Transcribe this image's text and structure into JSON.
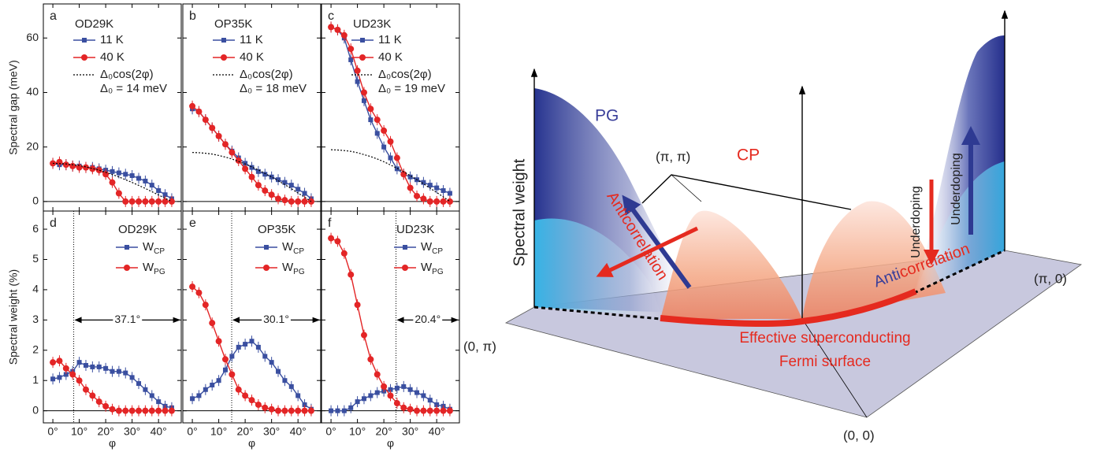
{
  "chart_data": [
    {
      "type": "line",
      "letter": "a",
      "title": "OD29K",
      "ylabel": "Spectral gap (meV)",
      "x": [
        0,
        2.5,
        5,
        7.5,
        10,
        12.5,
        15,
        17.5,
        20,
        22.5,
        25,
        27.5,
        30,
        32.5,
        35,
        37.5,
        40,
        42.5,
        45
      ],
      "series": [
        {
          "name": "11 K",
          "color": "#3a4fa0",
          "marker": "square",
          "values": [
            14,
            13.5,
            13.5,
            13,
            13,
            12.5,
            12.5,
            12,
            11.5,
            11,
            10.5,
            10,
            9.5,
            8.5,
            7.5,
            6,
            4,
            2.5,
            1
          ]
        },
        {
          "name": "40 K",
          "color": "#e32526",
          "marker": "circle",
          "values": [
            14,
            14.5,
            13.5,
            13,
            12.5,
            12.5,
            12,
            11.5,
            10,
            7,
            3,
            0,
            0,
            0,
            0,
            0,
            0,
            0,
            0
          ]
        },
        {
          "name": "Δ₀cos(2φ)",
          "color": "#000000",
          "dash": true,
          "values": [
            14,
            13.9,
            13.8,
            13.5,
            13.2,
            12.7,
            12.1,
            11.5,
            10.7,
            9.9,
            9,
            8,
            7,
            5.9,
            4.8,
            3.6,
            2.4,
            1.2,
            0
          ]
        }
      ],
      "delta_label": "Δ₀ = 14 meV",
      "xlim": [
        -3.6,
        48.6
      ],
      "ylim": [
        -3.5,
        72.5
      ],
      "yticks": [
        0,
        20,
        40,
        60
      ],
      "zero_line": true
    },
    {
      "type": "line",
      "letter": "b",
      "title": "OP35K",
      "x": [
        0,
        2.5,
        5,
        7.5,
        10,
        12.5,
        15,
        17.5,
        20,
        22.5,
        25,
        27.5,
        30,
        32.5,
        35,
        37.5,
        40,
        42.5,
        45
      ],
      "series": [
        {
          "name": "11 K",
          "color": "#3a4fa0",
          "marker": "square",
          "values": [
            34,
            33,
            30,
            27,
            24,
            21,
            18.5,
            16,
            14,
            12.5,
            11,
            10,
            9,
            8,
            7,
            6,
            4.5,
            3,
            1
          ]
        },
        {
          "name": "40 K",
          "color": "#e32526",
          "marker": "circle",
          "values": [
            35,
            33,
            30,
            27,
            24,
            21,
            18,
            15,
            12,
            9,
            6,
            4,
            2.5,
            1,
            0.5,
            0,
            0,
            0,
            0
          ]
        },
        {
          "name": "Δ₀cos(2φ)",
          "color": "#000000",
          "dash": true,
          "values": [
            18,
            17.9,
            17.7,
            17.4,
            16.9,
            16.3,
            15.6,
            14.7,
            13.8,
            12.7,
            11.6,
            10.3,
            9,
            7.6,
            6.2,
            4.7,
            3.1,
            1.6,
            0
          ]
        }
      ],
      "delta_label": "Δ₀ = 18 meV",
      "xlim": [
        -3.6,
        48.6
      ],
      "ylim": [
        -3.5,
        72.5
      ],
      "zero_line": true
    },
    {
      "type": "line",
      "letter": "c",
      "title": "UD23K",
      "x": [
        0,
        2.5,
        5,
        7.5,
        10,
        12.5,
        15,
        17.5,
        20,
        22.5,
        25,
        27.5,
        30,
        32.5,
        35,
        37.5,
        40,
        42.5,
        45
      ],
      "series": [
        {
          "name": "11 K",
          "color": "#3a4fa0",
          "marker": "square",
          "values": [
            64,
            63,
            60,
            52,
            44,
            37,
            30,
            25,
            20,
            16,
            12,
            10,
            9,
            8,
            7,
            6,
            5,
            4,
            3
          ]
        },
        {
          "name": "40 K",
          "color": "#e32526",
          "marker": "circle",
          "values": [
            64,
            63,
            61,
            56,
            48,
            40,
            34,
            30,
            26,
            22,
            16,
            10,
            5,
            2,
            1,
            0,
            0,
            0,
            0
          ]
        },
        {
          "name": "Δ₀cos(2φ)",
          "color": "#000000",
          "dash": true,
          "values": [
            19,
            18.9,
            18.7,
            18.4,
            17.9,
            17.2,
            16.5,
            15.6,
            14.6,
            13.4,
            12.2,
            10.9,
            9.5,
            8,
            6.5,
            4.9,
            3.3,
            1.7,
            0
          ]
        }
      ],
      "delta_label": "Δ₀ = 19 meV",
      "xlim": [
        -3.6,
        48.6
      ],
      "ylim": [
        -3.5,
        72.5
      ],
      "zero_line": true
    },
    {
      "type": "line",
      "letter": "d",
      "title": "OD29K",
      "ylabel": "Spectral weight (%)",
      "xlabel": "φ",
      "x": [
        0,
        2.5,
        5,
        7.5,
        10,
        12.5,
        15,
        17.5,
        20,
        22.5,
        25,
        27.5,
        30,
        32.5,
        35,
        37.5,
        40,
        42.5,
        45
      ],
      "series": [
        {
          "name": "WCP",
          "color": "#3a4fa0",
          "marker": "square",
          "values": [
            1.05,
            1.1,
            1.2,
            1.3,
            1.6,
            1.5,
            1.45,
            1.45,
            1.4,
            1.3,
            1.3,
            1.25,
            1.1,
            0.9,
            0.7,
            0.5,
            0.3,
            0.15,
            0.1
          ]
        },
        {
          "name": "WPG",
          "color": "#e32526",
          "marker": "circle",
          "values": [
            1.6,
            1.65,
            1.4,
            1.2,
            1,
            0.7,
            0.5,
            0.3,
            0.15,
            0.05,
            0,
            0,
            0,
            0,
            0,
            0,
            0,
            0,
            0
          ]
        }
      ],
      "subscript_names": true,
      "annotation": {
        "x": 7.9,
        "label": "37.1°"
      },
      "xlim": [
        -3.6,
        48.6
      ],
      "ylim": [
        -0.4,
        6.6
      ],
      "yticks": [
        0,
        1,
        2,
        3,
        4,
        5,
        6
      ],
      "zero_line": true,
      "xticks": [
        {
          "value": 0,
          "label": "0°"
        },
        {
          "value": 10,
          "label": "10°"
        },
        {
          "value": 20,
          "label": "20°"
        },
        {
          "value": 30,
          "label": "30°"
        },
        {
          "value": 40,
          "label": "40°"
        }
      ]
    },
    {
      "type": "line",
      "letter": "e",
      "title": "OP35K",
      "xlabel": "φ",
      "x": [
        0,
        2.5,
        5,
        7.5,
        10,
        12.5,
        15,
        17.5,
        20,
        22.5,
        25,
        27.5,
        30,
        32.5,
        35,
        37.5,
        40,
        42.5,
        45
      ],
      "series": [
        {
          "name": "WCP",
          "color": "#3a4fa0",
          "marker": "square",
          "values": [
            0.4,
            0.5,
            0.7,
            0.85,
            1,
            1.35,
            1.8,
            2.1,
            2.2,
            2.3,
            2.1,
            1.8,
            1.6,
            1.3,
            1,
            0.8,
            0.5,
            0.2,
            0.05
          ]
        },
        {
          "name": "WPG",
          "color": "#e32526",
          "marker": "circle",
          "values": [
            4.1,
            3.9,
            3.5,
            2.9,
            2.3,
            1.7,
            1.2,
            0.7,
            0.5,
            0.35,
            0.2,
            0.1,
            0.05,
            0,
            0,
            0,
            0,
            0,
            0
          ]
        }
      ],
      "subscript_names": true,
      "annotation": {
        "x": 14.9,
        "label": "30.1°"
      },
      "xlim": [
        -3.6,
        48.6
      ],
      "ylim": [
        -0.4,
        6.6
      ],
      "zero_line": true,
      "xticks": [
        {
          "value": 0,
          "label": "0°"
        },
        {
          "value": 10,
          "label": "10°"
        },
        {
          "value": 20,
          "label": "20°"
        },
        {
          "value": 30,
          "label": "30°"
        },
        {
          "value": 40,
          "label": "40°"
        }
      ]
    },
    {
      "type": "line",
      "letter": "f",
      "title": "UD23K",
      "xlabel": "φ",
      "x": [
        0,
        2.5,
        5,
        7.5,
        10,
        12.5,
        15,
        17.5,
        20,
        22.5,
        25,
        27.5,
        30,
        32.5,
        35,
        37.5,
        40,
        42.5,
        45
      ],
      "series": [
        {
          "name": "WCP",
          "color": "#3a4fa0",
          "marker": "square",
          "values": [
            0,
            0,
            0,
            0.1,
            0.3,
            0.4,
            0.5,
            0.6,
            0.65,
            0.7,
            0.75,
            0.8,
            0.7,
            0.6,
            0.5,
            0.35,
            0.2,
            0.15,
            0.05
          ]
        },
        {
          "name": "WPG",
          "color": "#e32526",
          "marker": "circle",
          "values": [
            5.7,
            5.6,
            5.2,
            4.5,
            3.5,
            2.5,
            1.7,
            1.2,
            0.8,
            0.5,
            0.25,
            0.1,
            0.05,
            0,
            0,
            0,
            0,
            0,
            0
          ]
        }
      ],
      "subscript_names": true,
      "annotation": {
        "x": 24.6,
        "label": "20.4°"
      },
      "xlim": [
        -3.6,
        48.6
      ],
      "ylim": [
        -0.4,
        6.6
      ],
      "zero_line": true,
      "xticks": [
        {
          "value": 0,
          "label": "0°"
        },
        {
          "value": 10,
          "label": "10°"
        },
        {
          "value": 20,
          "label": "20°"
        },
        {
          "value": 30,
          "label": "30°"
        },
        {
          "value": 40,
          "label": "40°"
        }
      ]
    }
  ],
  "schematic": {
    "pg": "PG",
    "cp": "CP",
    "pi_pi": "(π, π)",
    "y_axis": "Spectral weight",
    "anticorrelation_left": "Anticorrelation",
    "underdoping_center": "Underdoping",
    "underdoping_right": "Underdoping",
    "anticorrelation_right": [
      "Anti",
      "correlation"
    ],
    "pi_0": "(π, 0)",
    "zero_pi": "(0, π)",
    "origin": "(0, 0)",
    "fermi_surface": [
      "Effective superconducting",
      "Fermi surface"
    ]
  }
}
